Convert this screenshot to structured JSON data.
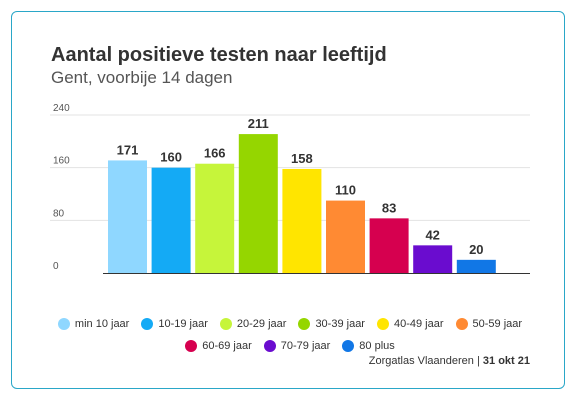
{
  "title": "Aantal positieve testen naar leeftijd",
  "subtitle": "Gent, voorbije 14 dagen",
  "source": "Zorgatlas Vlaanderen",
  "date": "31 okt 21",
  "chart_data": {
    "type": "bar",
    "title": "Aantal positieve testen naar leeftijd",
    "subtitle": "Gent, voorbije 14 dagen",
    "ylim": [
      0,
      240
    ],
    "yticks": [
      0,
      80,
      160,
      240
    ],
    "grid": true,
    "legend_placement": "bottom",
    "categories": [
      "min 10 jaar",
      "10-19 jaar",
      "20-29 jaar",
      "30-39 jaar",
      "40-49 jaar",
      "50-59 jaar",
      "60-69 jaar",
      "70-79 jaar",
      "80 plus"
    ],
    "values": [
      171,
      160,
      166,
      211,
      158,
      110,
      83,
      42,
      20
    ],
    "colors": [
      "#8fd7ff",
      "#14aaf5",
      "#c6f53a",
      "#95d600",
      "#ffe500",
      "#ff8a33",
      "#d6004f",
      "#6a0ccf",
      "#1177e6"
    ]
  }
}
